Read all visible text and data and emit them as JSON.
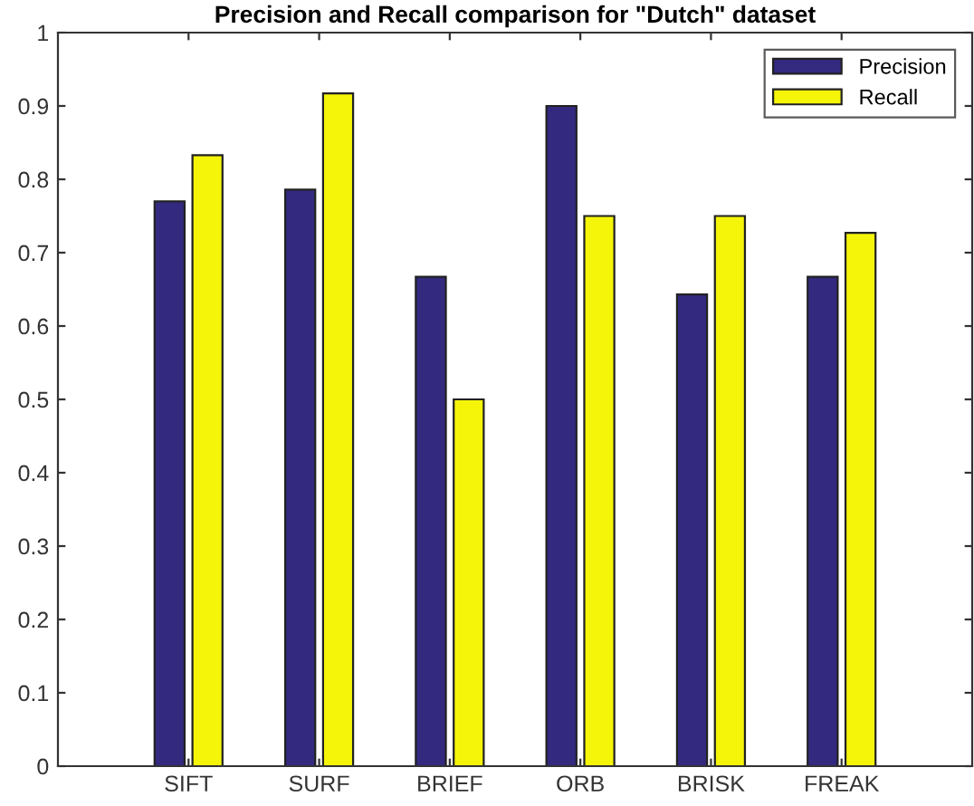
{
  "chart_data": {
    "type": "bar",
    "title": "Precision and Recall comparison for \"Dutch\" dataset",
    "categories": [
      "SIFT",
      "SURF",
      "BRIEF",
      "ORB",
      "BRISK",
      "FREAK"
    ],
    "series": [
      {
        "name": "Precision",
        "color": "#332a80",
        "values": [
          0.77,
          0.786,
          0.667,
          0.9,
          0.643,
          0.667
        ]
      },
      {
        "name": "Recall",
        "color": "#f5f50a",
        "values": [
          0.833,
          0.917,
          0.5,
          0.75,
          0.75,
          0.727
        ]
      }
    ],
    "ylim": [
      0,
      1
    ],
    "yticks": [
      0,
      0.1,
      0.2,
      0.3,
      0.4,
      0.5,
      0.6,
      0.7,
      0.8,
      0.9,
      1
    ],
    "grid": false,
    "legend": "top right"
  }
}
